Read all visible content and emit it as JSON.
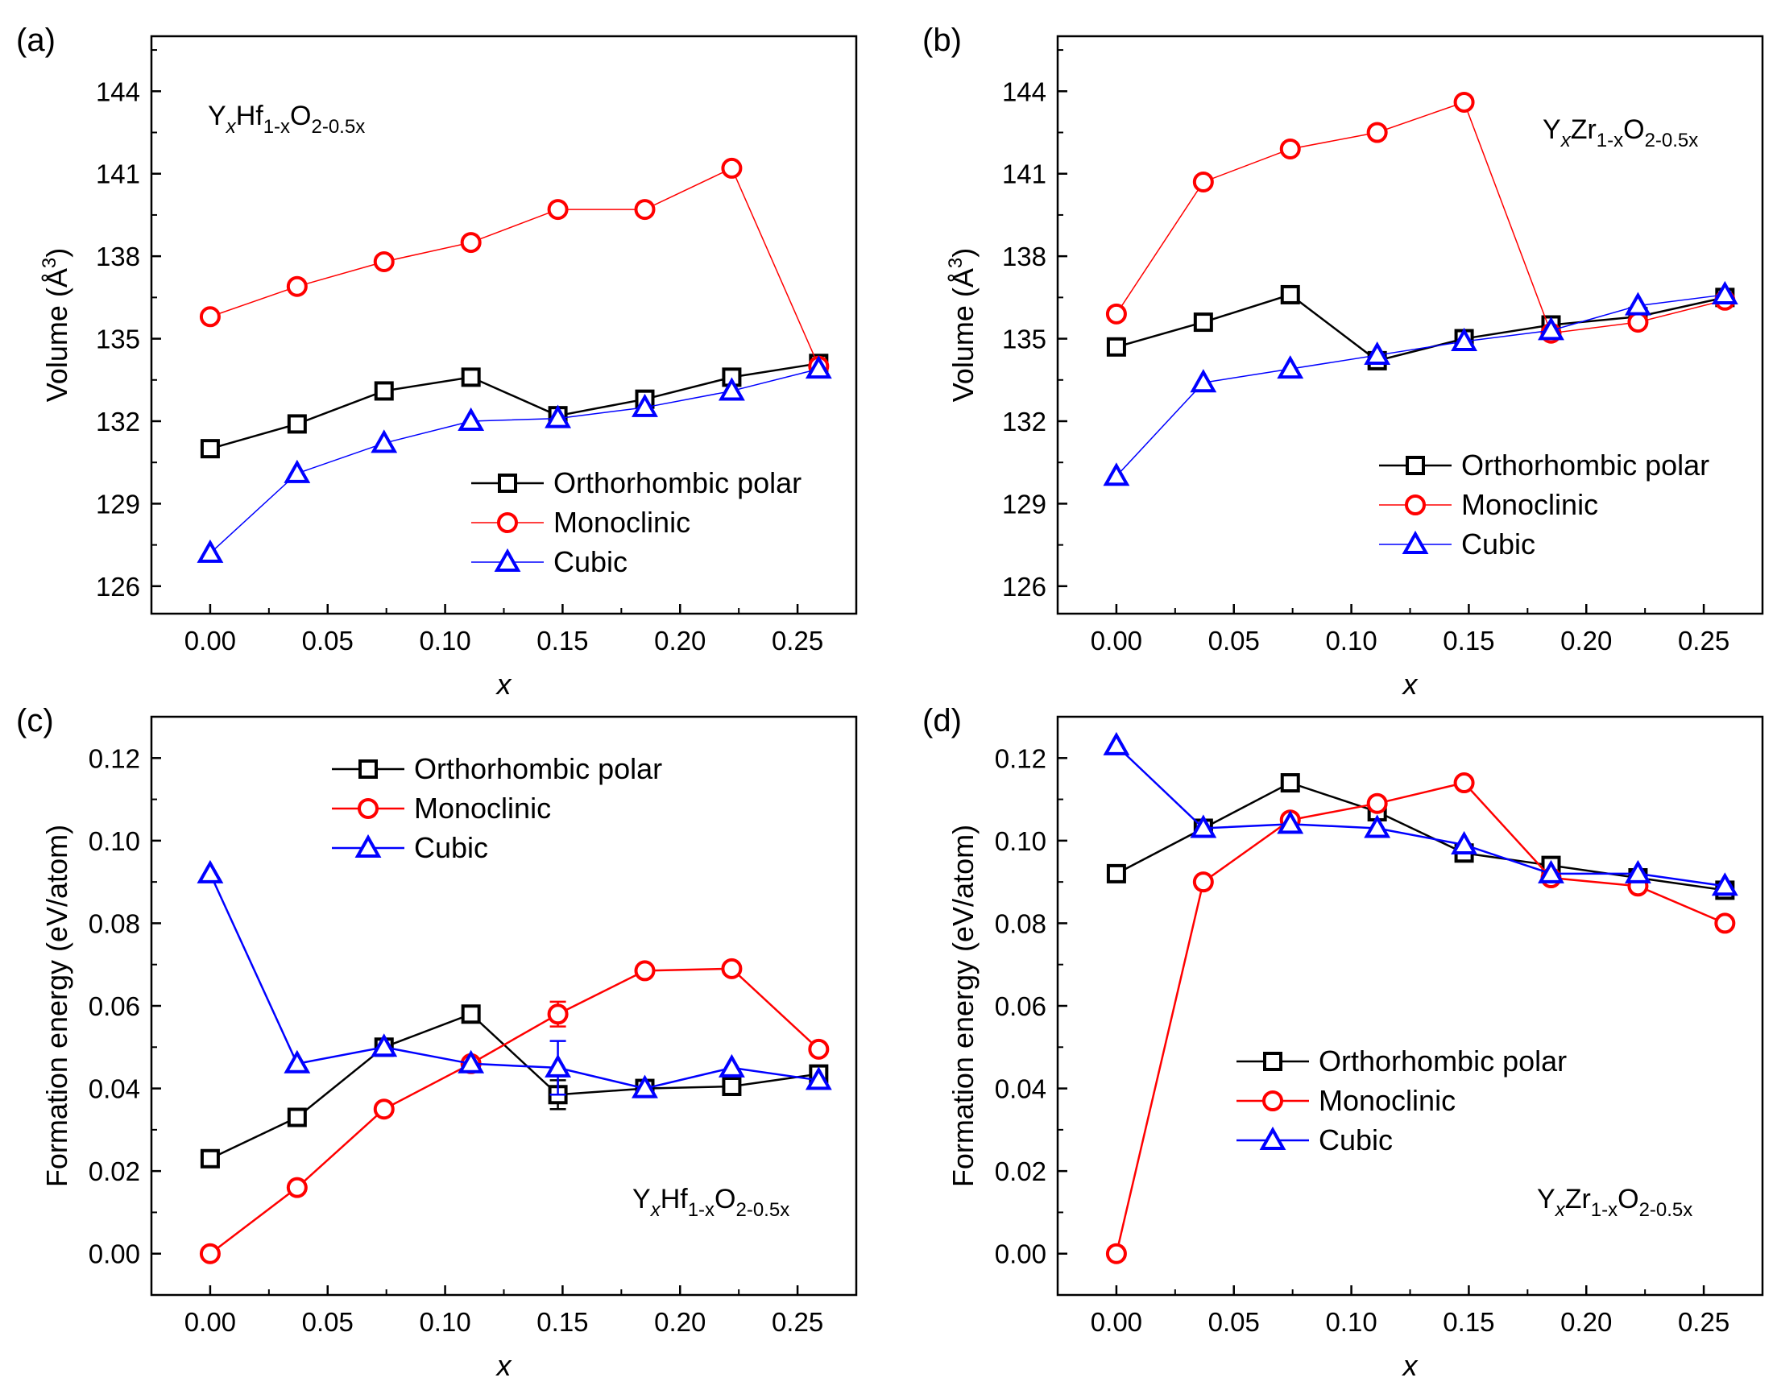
{
  "chart_data": [
    {
      "id": "a",
      "type": "line",
      "panel_label": "(a)",
      "xlabel": "x",
      "ylabel": "Volume (Å³)",
      "ylabel_parts": {
        "main": "Volume (Å",
        "sup": "3",
        "end": ")"
      },
      "xlim": [
        -0.025,
        0.275
      ],
      "ylim": [
        125,
        146
      ],
      "xticks": [
        "0.00",
        "0.05",
        "0.10",
        "0.15",
        "0.20",
        "0.25"
      ],
      "yticks": [
        "126",
        "129",
        "132",
        "135",
        "138",
        "141",
        "144"
      ],
      "annotation": {
        "base1": "Y",
        "sub1": "x",
        "base2": "Hf",
        "sub2": "1-x",
        "base3": "O",
        "sub3": "2-0.5x"
      },
      "legend_position": "lower-right",
      "x": [
        0.0,
        0.037,
        0.074,
        0.111,
        0.148,
        0.185,
        0.222,
        0.259
      ],
      "series": [
        {
          "name": "Orthorhombic polar",
          "color": "#000000",
          "marker": "square",
          "values": [
            131.0,
            131.9,
            133.1,
            133.6,
            132.2,
            132.8,
            133.6,
            134.1
          ]
        },
        {
          "name": "Monoclinic",
          "color": "#ff0000",
          "marker": "circle",
          "values": [
            135.8,
            136.9,
            137.8,
            138.5,
            139.7,
            139.7,
            141.2,
            134.0
          ]
        },
        {
          "name": "Cubic",
          "color": "#0000ff",
          "marker": "triangle",
          "values": [
            127.2,
            130.1,
            131.2,
            132.0,
            132.1,
            132.5,
            133.1,
            133.9
          ]
        }
      ]
    },
    {
      "id": "b",
      "type": "line",
      "panel_label": "(b)",
      "xlabel": "x",
      "ylabel": "Volume (Å³)",
      "ylabel_parts": {
        "main": "Volume (Å",
        "sup": "3",
        "end": ")"
      },
      "xlim": [
        -0.025,
        0.275
      ],
      "ylim": [
        125,
        146
      ],
      "xticks": [
        "0.00",
        "0.05",
        "0.10",
        "0.15",
        "0.20",
        "0.25"
      ],
      "yticks": [
        "126",
        "129",
        "132",
        "135",
        "138",
        "141",
        "144"
      ],
      "annotation": {
        "base1": "Y",
        "sub1": "x",
        "base2": "Zr",
        "sub2": "1-x",
        "base3": "O",
        "sub3": "2-0.5x"
      },
      "legend_position": "lower-right",
      "x": [
        0.0,
        0.037,
        0.074,
        0.111,
        0.148,
        0.185,
        0.222,
        0.259
      ],
      "series": [
        {
          "name": "Orthorhombic polar",
          "color": "#000000",
          "marker": "square",
          "values": [
            134.7,
            135.6,
            136.6,
            134.2,
            135.0,
            135.5,
            135.8,
            136.5
          ]
        },
        {
          "name": "Monoclinic",
          "color": "#ff0000",
          "marker": "circle",
          "values": [
            135.9,
            140.7,
            141.9,
            142.5,
            143.6,
            135.2,
            135.6,
            136.4
          ]
        },
        {
          "name": "Cubic",
          "color": "#0000ff",
          "marker": "triangle",
          "values": [
            130.0,
            133.4,
            133.9,
            134.4,
            134.9,
            135.3,
            136.2,
            136.6
          ]
        }
      ]
    },
    {
      "id": "c",
      "type": "line",
      "panel_label": "(c)",
      "xlabel": "x",
      "ylabel": "Formation energy (eV/atom)",
      "xlim": [
        -0.025,
        0.275
      ],
      "ylim": [
        -0.01,
        0.13
      ],
      "xticks": [
        "0.00",
        "0.05",
        "0.10",
        "0.15",
        "0.20",
        "0.25"
      ],
      "yticks": [
        "0.00",
        "0.02",
        "0.04",
        "0.06",
        "0.08",
        "0.10",
        "0.12"
      ],
      "annotation": {
        "base1": "Y",
        "sub1": "x",
        "base2": "Hf",
        "sub2": "1-x",
        "base3": "O",
        "sub3": "2-0.5x"
      },
      "legend_position": "top-center",
      "x": [
        0.0,
        0.037,
        0.074,
        0.111,
        0.148,
        0.185,
        0.222,
        0.259
      ],
      "series": [
        {
          "name": "Orthorhombic polar",
          "color": "#000000",
          "marker": "square",
          "values": [
            0.023,
            0.033,
            0.05,
            0.058,
            0.0385,
            0.04,
            0.0405,
            0.0435
          ],
          "error_bars": [
            {
              "index": 4,
              "err": 0.0035
            }
          ]
        },
        {
          "name": "Monoclinic",
          "color": "#ff0000",
          "marker": "circle",
          "values": [
            0.0,
            0.016,
            0.035,
            0.046,
            0.058,
            0.0685,
            0.069,
            0.0495
          ],
          "error_bars": [
            {
              "index": 4,
              "err": 0.003
            }
          ]
        },
        {
          "name": "Cubic",
          "color": "#0000ff",
          "marker": "triangle",
          "values": [
            0.092,
            0.046,
            0.05,
            0.046,
            0.045,
            0.04,
            0.045,
            0.042
          ],
          "error_bars": [
            {
              "index": 4,
              "err": 0.0065
            }
          ]
        }
      ]
    },
    {
      "id": "d",
      "type": "line",
      "panel_label": "(d)",
      "xlabel": "x",
      "ylabel": "Formation energy (eV/atom)",
      "xlim": [
        -0.025,
        0.275
      ],
      "ylim": [
        -0.01,
        0.13
      ],
      "xticks": [
        "0.00",
        "0.05",
        "0.10",
        "0.15",
        "0.20",
        "0.25"
      ],
      "yticks": [
        "0.00",
        "0.02",
        "0.04",
        "0.06",
        "0.08",
        "0.10",
        "0.12"
      ],
      "annotation": {
        "base1": "Y",
        "sub1": "x",
        "base2": "Zr",
        "sub2": "1-x",
        "base3": "O",
        "sub3": "2-0.5x"
      },
      "legend_position": "lower-right",
      "x": [
        0.0,
        0.037,
        0.074,
        0.111,
        0.148,
        0.185,
        0.222,
        0.259
      ],
      "series": [
        {
          "name": "Orthorhombic polar",
          "color": "#000000",
          "marker": "square",
          "values": [
            0.092,
            0.103,
            0.114,
            0.107,
            0.097,
            0.094,
            0.091,
            0.088
          ]
        },
        {
          "name": "Monoclinic",
          "color": "#ff0000",
          "marker": "circle",
          "values": [
            0.0,
            0.09,
            0.105,
            0.109,
            0.114,
            0.091,
            0.089,
            0.08
          ]
        },
        {
          "name": "Cubic",
          "color": "#0000ff",
          "marker": "triangle",
          "values": [
            0.123,
            0.103,
            0.104,
            0.103,
            0.099,
            0.092,
            0.092,
            0.089
          ]
        }
      ]
    }
  ]
}
